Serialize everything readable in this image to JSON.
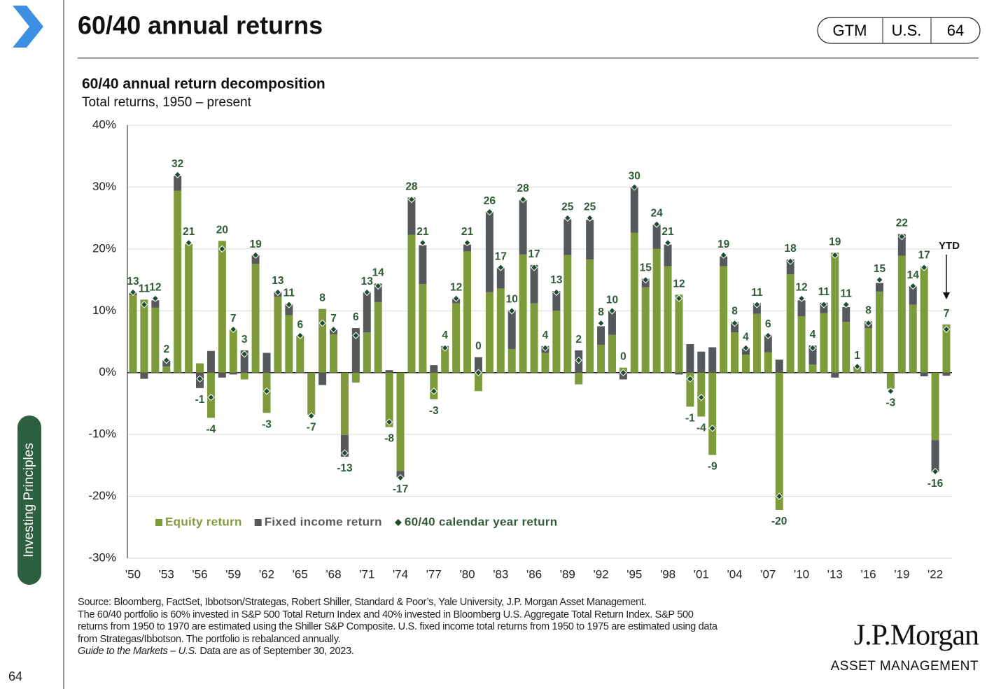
{
  "header": {
    "title": "60/40 annual returns",
    "tabs": [
      "GTM",
      "U.S.",
      "64"
    ]
  },
  "sidebar": {
    "label": "Investing Principles"
  },
  "page_number": "64",
  "chart_data": {
    "type": "bar",
    "title": "60/40 annual return decomposition",
    "subtitle": "Total returns, 1950 – present",
    "categories": [
      "'50",
      null,
      null,
      "'53",
      null,
      null,
      "'56",
      null,
      null,
      "'59",
      null,
      null,
      "'62",
      null,
      null,
      "'65",
      null,
      null,
      "'68",
      null,
      null,
      "'71",
      null,
      null,
      "'74",
      null,
      null,
      "'77",
      null,
      null,
      "'80",
      null,
      null,
      "'83",
      null,
      null,
      "'86",
      null,
      null,
      "'89",
      null,
      null,
      "'92",
      null,
      null,
      "'95",
      null,
      null,
      "'98",
      null,
      null,
      "'01",
      null,
      null,
      "'04",
      null,
      null,
      "'07",
      null,
      null,
      "'10",
      null,
      null,
      "'13",
      null,
      null,
      "'16",
      null,
      null,
      "'19",
      null,
      null,
      "'22",
      null
    ],
    "series": [
      {
        "name": "Equity return",
        "color": "#7d9b3b",
        "stacked": true,
        "values": [
          12.5,
          11.8,
          10.5,
          1,
          29.4,
          20.8,
          1.5,
          -7.3,
          21.3,
          7,
          -1.1,
          17.6,
          -6.5,
          12.3,
          9.3,
          6,
          -6.8,
          10.3,
          6.2,
          -10.1,
          -1.6,
          6.5,
          11.4,
          -8.8,
          -15.9,
          22.3,
          14.3,
          -4.3,
          3.9,
          11.2,
          19.6,
          -3,
          13,
          13.6,
          3.8,
          19.1,
          11.2,
          3.2,
          10,
          19,
          -1.9,
          18.3,
          4.5,
          6.1,
          0.8,
          22.6,
          13.8,
          20,
          17.2,
          12.6,
          -5.5,
          -7.1,
          -13.3,
          17.2,
          6.5,
          2.9,
          9.5,
          3.3,
          -22.2,
          15.9,
          9.1,
          1.3,
          9.6,
          19.4,
          8.2,
          0.8,
          7.2,
          13.1,
          -2.6,
          18.9,
          11,
          17.2,
          -10.9,
          7.8
        ]
      },
      {
        "name": "Fixed income return",
        "color": "#56595b",
        "stacked": true,
        "values": [
          0.4,
          -1,
          1.2,
          1,
          2.4,
          0,
          -2.5,
          3.5,
          -0.8,
          -0.3,
          3.6,
          1.4,
          3.2,
          0.8,
          1.8,
          0,
          0,
          -2,
          0.8,
          -3.5,
          7.2,
          6.5,
          3,
          0.4,
          -1,
          6,
          6.3,
          1.2,
          0.4,
          0.7,
          1.1,
          2.5,
          13,
          3.3,
          6.3,
          8.8,
          6.2,
          1.1,
          3.2,
          5.8,
          3.6,
          6.4,
          3,
          3.9,
          -1.1,
          7.4,
          1.4,
          3.9,
          3.5,
          -0.3,
          4.6,
          3.4,
          4.1,
          1.6,
          1.7,
          1,
          1.7,
          2.8,
          2.1,
          2.4,
          2.6,
          3.1,
          1.7,
          -0.8,
          2.4,
          0.2,
          1.1,
          1.4,
          0,
          3.5,
          3,
          -0.6,
          -5.2,
          -0.5
        ]
      },
      {
        "name": "60/40 calendar year return",
        "color": "#1d4d2e",
        "marker": "diamond",
        "label_color": "#2f5b36",
        "values": [
          13,
          11,
          12,
          2,
          32,
          21,
          -1,
          -4,
          20,
          7,
          3,
          19,
          -3,
          13,
          11,
          6,
          -7,
          8,
          7,
          -13,
          6,
          13,
          14,
          -8,
          -17,
          28,
          21,
          -3,
          4,
          12,
          21,
          0,
          26,
          17,
          10,
          28,
          17,
          4,
          13,
          25,
          2,
          25,
          8,
          10,
          0,
          30,
          15,
          24,
          21,
          12,
          -1,
          -4,
          -9,
          19,
          8,
          4,
          11,
          6,
          -20,
          18,
          12,
          4,
          11,
          19,
          11,
          1,
          8,
          15,
          -3,
          22,
          14,
          17,
          -16,
          7
        ]
      }
    ],
    "ylim": [
      -30,
      40
    ],
    "yticks": [
      {
        "value": -30,
        "label": "-30%"
      },
      {
        "value": -20,
        "label": "-20%"
      },
      {
        "value": -10,
        "label": "-10%"
      },
      {
        "value": 0,
        "label": "0%"
      },
      {
        "value": 10,
        "label": "10%"
      },
      {
        "value": 20,
        "label": "20%"
      },
      {
        "value": 30,
        "label": "30%"
      },
      {
        "value": 40,
        "label": "40%"
      }
    ],
    "grid": true,
    "legend": "lower left",
    "annotations": [
      {
        "text": "YTD",
        "index": 73
      }
    ]
  },
  "footnotes": [
    "Source: Bloomberg, FactSet, Ibbotson/Strategas, Robert Shiller, Standard & Poor’s, Yale University, J.P. Morgan Asset Management.",
    "The 60/40 portfolio is 60% invested in S&P 500 Total Return Index and 40% invested in Bloomberg U.S. Aggregate Total Return Index. S&P 500",
    "returns from 1950 to 1970 are estimated using the Shiller S&P Composite. U.S. fixed income total returns from 1950 to 1975 are estimated using data",
    "from Strategas/Ibbotson. The portfolio is rebalanced annually."
  ],
  "footnote_last": {
    "italic": "Guide to the Markets – U.S.",
    "text": " Data are as of September 30, 2023."
  },
  "logo": {
    "name": "J.P.Morgan",
    "sub": "ASSET MANAGEMENT"
  }
}
